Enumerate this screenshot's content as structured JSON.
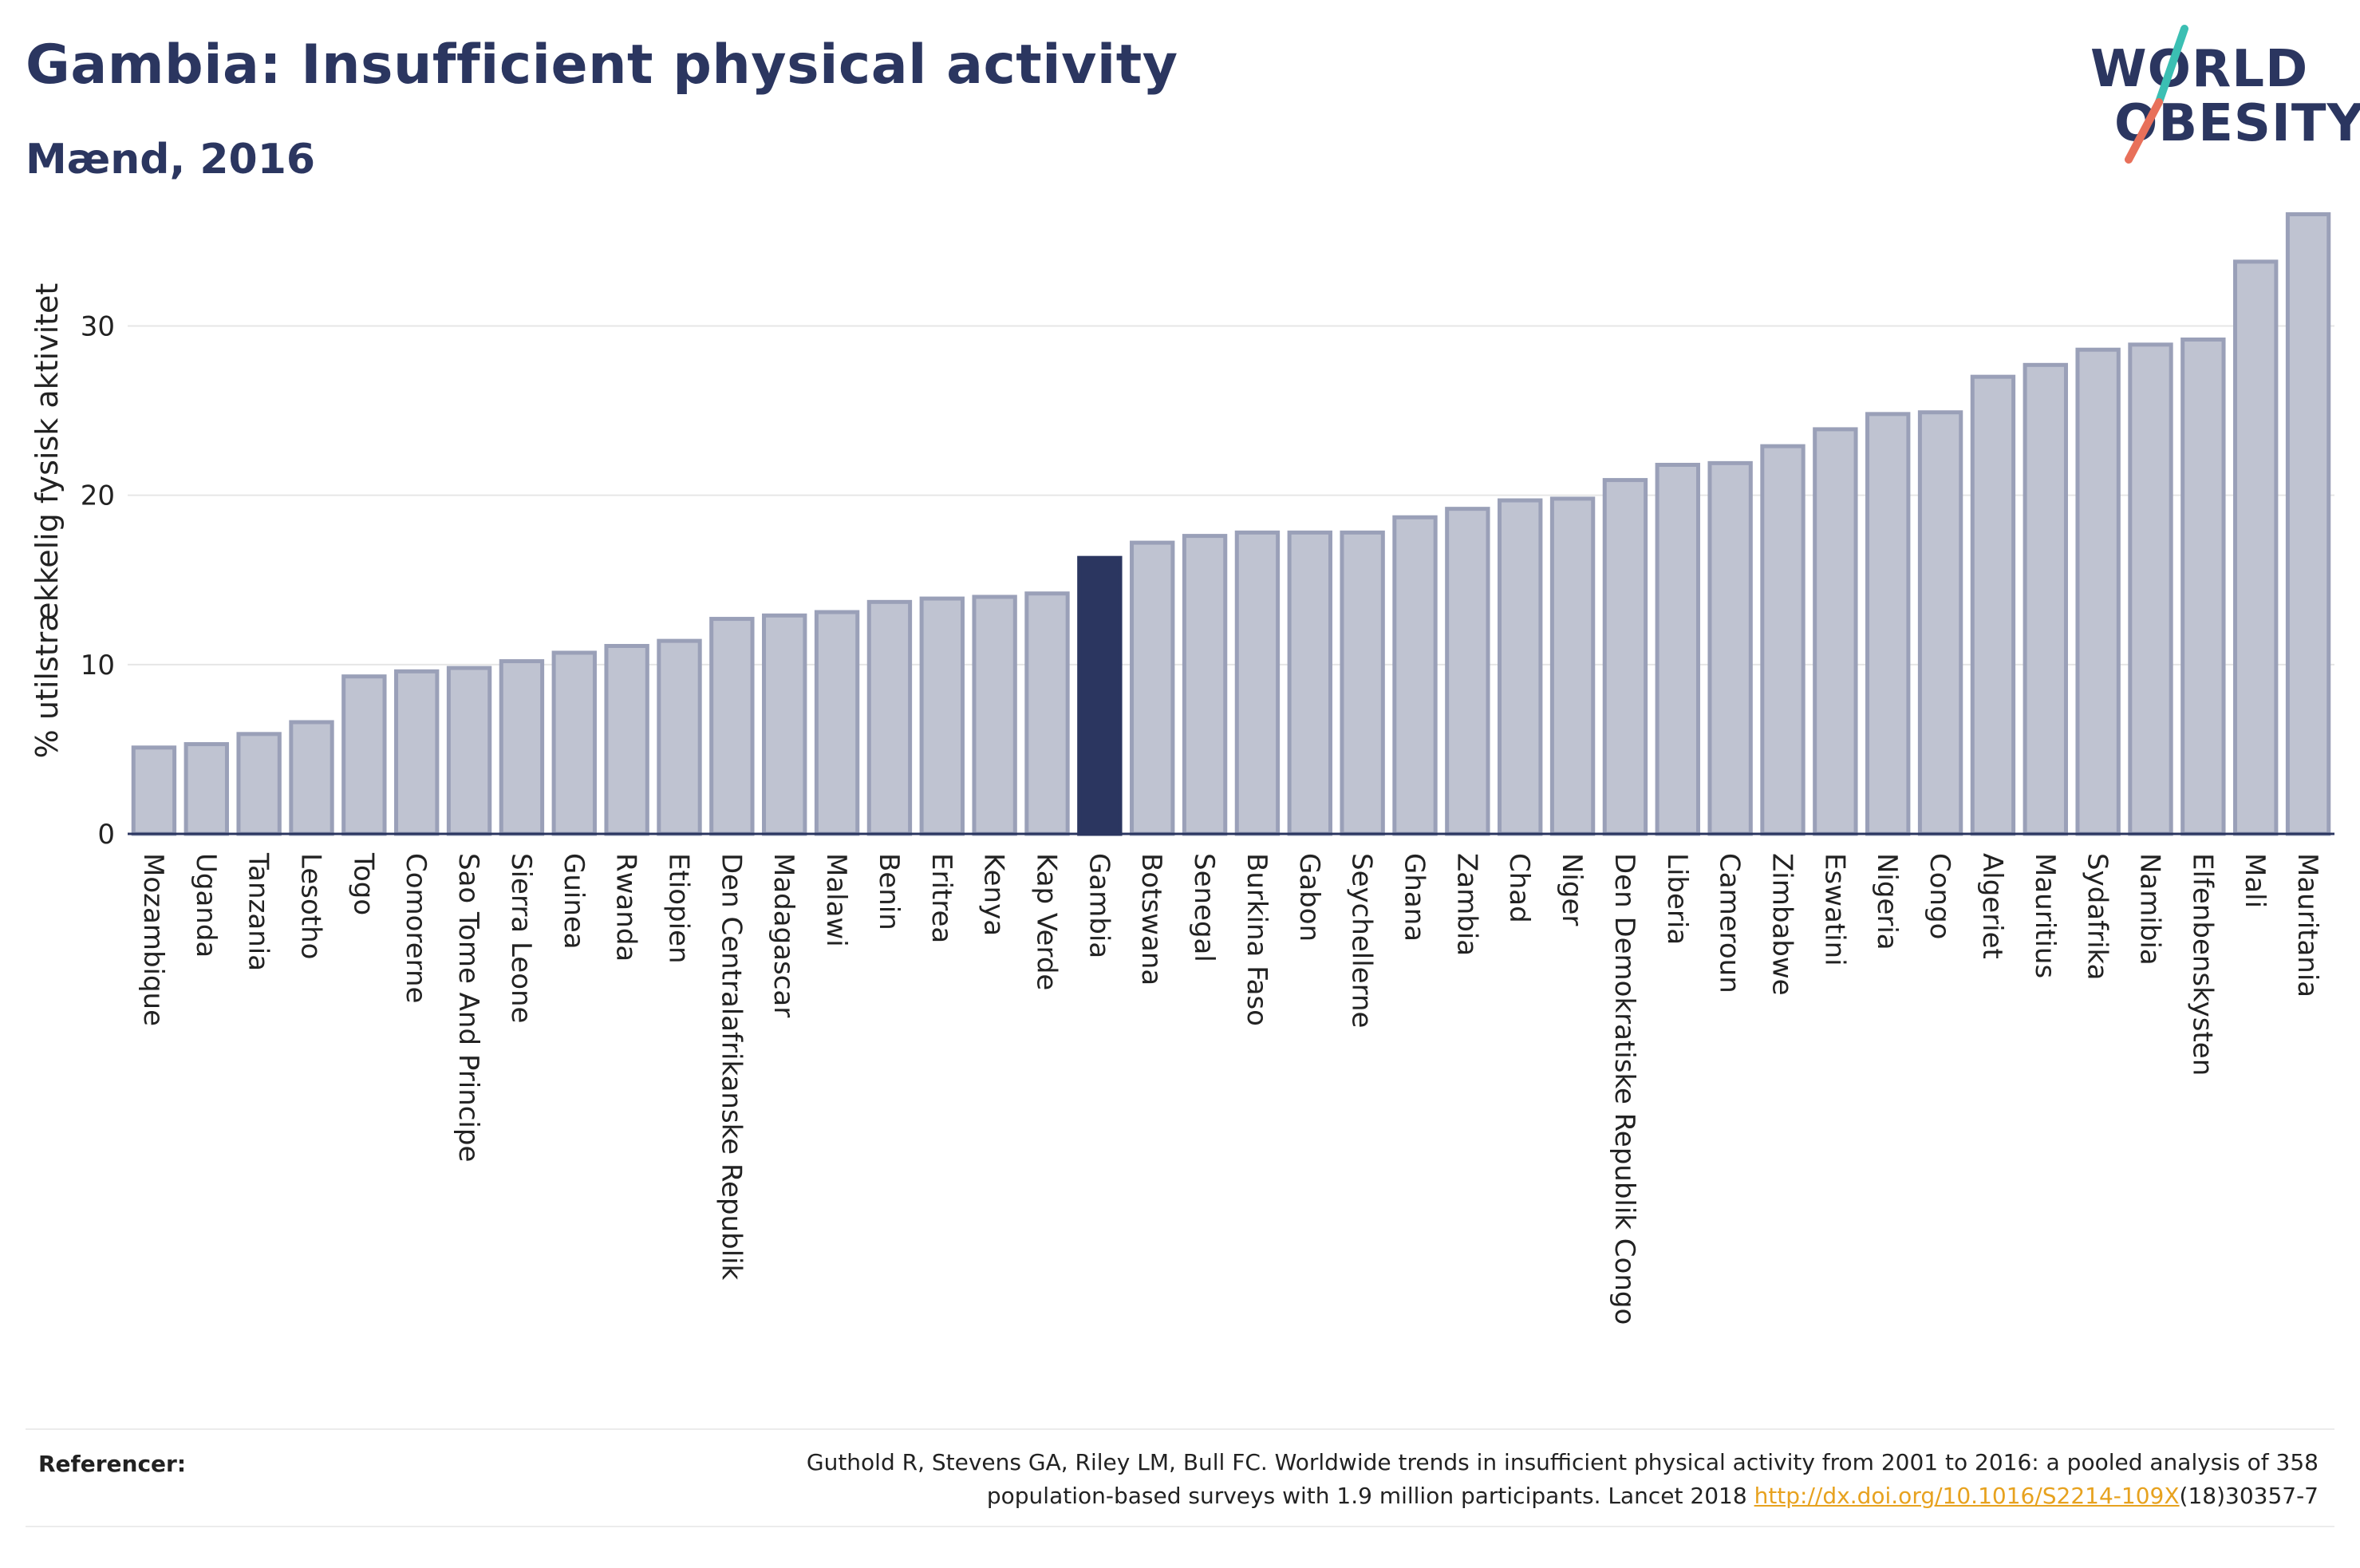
{
  "header": {
    "title": "Gambia: Insufficient physical activity",
    "subtitle": "Mænd, 2016"
  },
  "logo": {
    "line1": "WORLD",
    "line2": "OBESITY",
    "colors": {
      "text": "#2b3660",
      "slash_top": "#3bbfb3",
      "slash_bottom": "#e8705a"
    }
  },
  "chart_data": {
    "type": "bar",
    "ylabel": "% utilstrækkelig fysisk aktivitet",
    "ylim": [
      0,
      37
    ],
    "yticks": [
      0,
      10,
      20,
      30
    ],
    "grid": true,
    "highlight": "Gambia",
    "colors": {
      "bar": "#bfc3d1",
      "bar_edge": "#9aa0b8",
      "highlight": "#2b3660",
      "grid": "#e6e6e6",
      "axis": "#2b3660"
    },
    "categories": [
      "Mozambique",
      "Uganda",
      "Tanzania",
      "Lesotho",
      "Togo",
      "Comorerne",
      "Sao Tome And Principe",
      "Sierra Leone",
      "Guinea",
      "Rwanda",
      "Etiopien",
      "Den Centralafrikanske Republik",
      "Madagascar",
      "Malawi",
      "Benin",
      "Eritrea",
      "Kenya",
      "Kap Verde",
      "Gambia",
      "Botswana",
      "Senegal",
      "Burkina Faso",
      "Gabon",
      "Seychellerne",
      "Ghana",
      "Zambia",
      "Chad",
      "Niger",
      "Den Demokratiske Republik Congo",
      "Liberia",
      "Cameroun",
      "Zimbabwe",
      "Eswatini",
      "Nigeria",
      "Congo",
      "Algeriet",
      "Mauritius",
      "Sydafrika",
      "Namibia",
      "Elfenbenskysten",
      "Mali",
      "Mauritania"
    ],
    "values": [
      5.1,
      5.3,
      5.9,
      6.6,
      9.3,
      9.6,
      9.8,
      10.2,
      10.7,
      11.1,
      11.4,
      12.7,
      12.9,
      13.1,
      13.7,
      13.9,
      14.0,
      14.2,
      16.3,
      17.2,
      17.6,
      17.8,
      17.8,
      17.8,
      18.7,
      19.2,
      19.7,
      19.8,
      20.9,
      21.8,
      21.9,
      22.9,
      23.9,
      24.8,
      24.9,
      27.0,
      27.7,
      28.6,
      28.9,
      29.2,
      33.8,
      36.6
    ]
  },
  "references": {
    "label": "Referencer:",
    "line1": "Guthold R, Stevens GA, Riley LM, Bull FC. Worldwide trends in insufficient physical activity from 2001 to 2016: a pooled analysis of 358",
    "line2_prefix": "population-based surveys with 1.9 million participants. Lancet 2018 ",
    "link": "http://dx.doi.org/10.1016/S2214-109X",
    "line2_suffix": "(18)30357-7"
  }
}
